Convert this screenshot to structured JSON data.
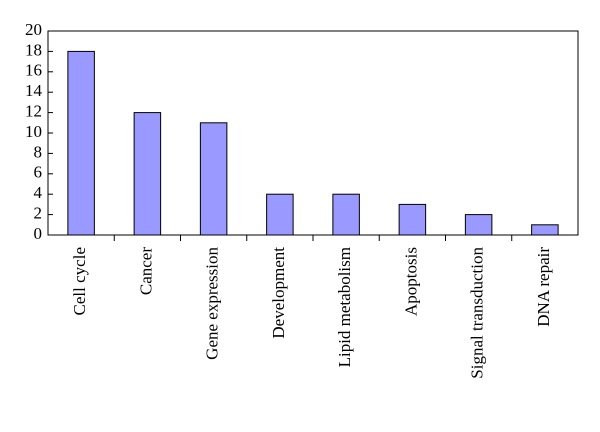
{
  "chart_data": {
    "type": "bar",
    "categories": [
      "Cell cycle",
      "Cancer",
      "Gene expression",
      "Development",
      "Lipid metabolism",
      "Apoptosis",
      "Signal transduction",
      "DNA repair"
    ],
    "values": [
      18,
      12,
      11,
      4,
      4,
      3,
      2,
      1
    ],
    "color": "#9999ff",
    "ylim": [
      0,
      20
    ],
    "yticks": [
      0,
      2,
      4,
      6,
      8,
      10,
      12,
      14,
      16,
      18,
      20
    ],
    "grid": false
  }
}
